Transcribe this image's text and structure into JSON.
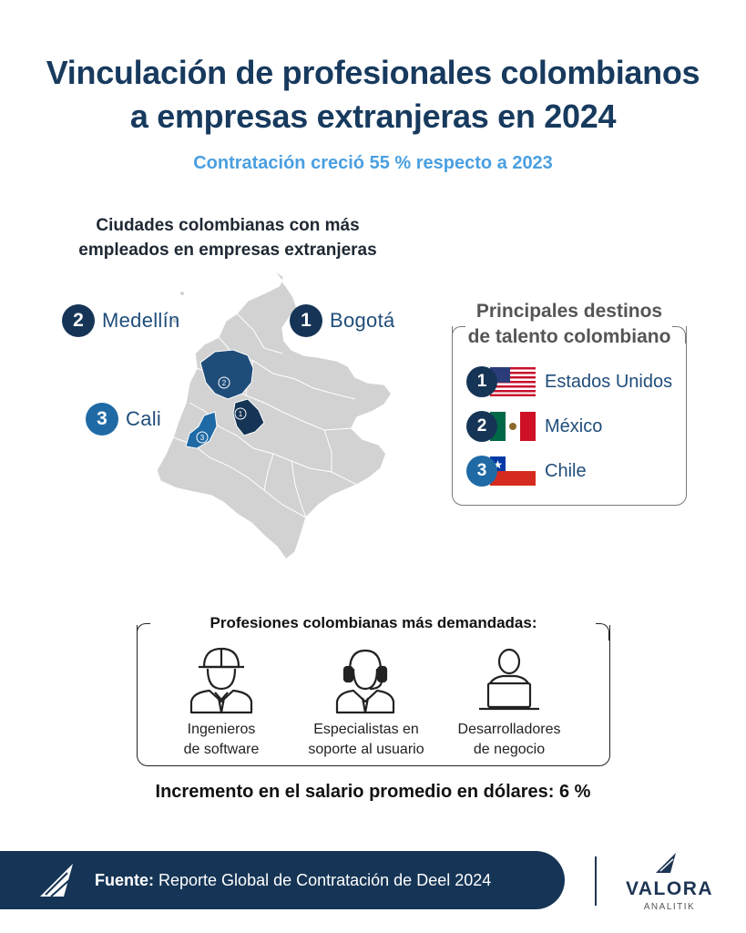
{
  "title_line1": "Vinculación de profesionales colombianos",
  "title_line2": "a empresas extranjeras en 2024",
  "subtitle": "Contratación creció 55 % respecto a 2023",
  "cities": {
    "heading_line1": "Ciudades colombianas con más",
    "heading_line2": "empleados en empresas extranjeras",
    "items": [
      {
        "rank": "1",
        "name": "Bogotá",
        "color": "#163556"
      },
      {
        "rank": "2",
        "name": "Medellín",
        "color": "#1f4d7a"
      },
      {
        "rank": "3",
        "name": "Cali",
        "color": "#1f6aa5"
      }
    ],
    "map_markers": [
      "1",
      "2",
      "3"
    ]
  },
  "destinations": {
    "heading_line1": "Principales destinos",
    "heading_line2": "de talento colombiano",
    "items": [
      {
        "rank": "1",
        "name": "Estados Unidos",
        "flag": "us-flag-icon"
      },
      {
        "rank": "2",
        "name": "México",
        "flag": "mexico-flag-icon"
      },
      {
        "rank": "3",
        "name": "Chile",
        "flag": "chile-flag-icon"
      }
    ]
  },
  "professions": {
    "heading": "Profesiones colombianas más demandadas:",
    "items": [
      {
        "line1": "Ingenieros",
        "line2": "de software",
        "icon": "engineer-icon"
      },
      {
        "line1": "Especialistas en",
        "line2": "soporte al usuario",
        "icon": "headset-agent-icon"
      },
      {
        "line1": "Desarrolladores",
        "line2": "de negocio",
        "icon": "laptop-user-icon"
      }
    ]
  },
  "salary": "Incremento en el salario promedio en dólares: 6 %",
  "footer": {
    "source_label": "Fuente:",
    "source_text": "Reporte Global de Contratación de Deel 2024",
    "brand": "VALORA",
    "brand_sub": "ANALITIK"
  },
  "colors": {
    "navy": "#163556",
    "accent_blue": "#4a9fe0",
    "map_gray": "#d2d2d2"
  }
}
